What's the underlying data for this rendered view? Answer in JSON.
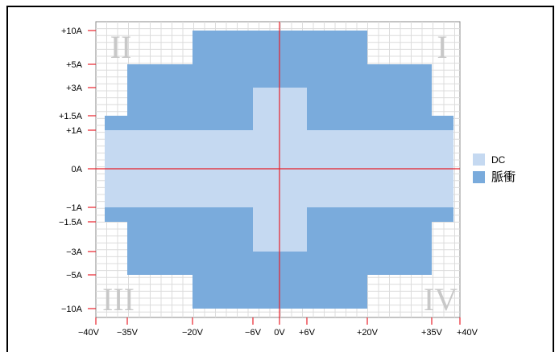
{
  "chart_data": {
    "type": "area",
    "x_ticks": [
      {
        "v": -40,
        "label": "−40V"
      },
      {
        "v": -35,
        "label": "−35V"
      },
      {
        "v": -20,
        "label": "−20V"
      },
      {
        "v": -6,
        "label": "−6V"
      },
      {
        "v": 0,
        "label": "0V"
      },
      {
        "v": 6,
        "label": "+6V"
      },
      {
        "v": 20,
        "label": "+20V"
      },
      {
        "v": 35,
        "label": "+35V"
      },
      {
        "v": 40,
        "label": "+40V"
      }
    ],
    "y_ticks": [
      {
        "v": 10,
        "label": "+10A"
      },
      {
        "v": 5,
        "label": "+5A"
      },
      {
        "v": 3,
        "label": "+3A"
      },
      {
        "v": 1.5,
        "label": "+1.5A"
      },
      {
        "v": 1,
        "label": "+1A"
      },
      {
        "v": 0,
        "label": "0A"
      },
      {
        "v": -1,
        "label": "−1A"
      },
      {
        "v": -1.5,
        "label": "−1.5A"
      },
      {
        "v": -3,
        "label": "−3A"
      },
      {
        "v": -5,
        "label": "−5A"
      },
      {
        "v": -10,
        "label": "−10A"
      }
    ],
    "series": [
      {
        "name": "DC",
        "color": "#c5d9f1",
        "regions": [
          {
            "x": [
              -38,
              38
            ],
            "y": [
              -1,
              1
            ]
          },
          {
            "x": [
              -6,
              6
            ],
            "y": [
              -3,
              3
            ]
          }
        ]
      },
      {
        "name": "脈衝",
        "color": "#7aabdc",
        "regions": [
          {
            "x": [
              -38,
              38
            ],
            "y": [
              -1.5,
              1.5
            ]
          },
          {
            "x": [
              -35,
              35
            ],
            "y": [
              -5,
              5
            ]
          },
          {
            "x": [
              -20,
              20
            ],
            "y": [
              -10,
              10
            ]
          }
        ]
      }
    ],
    "quadrant_labels": [
      "I",
      "II",
      "III",
      "IV"
    ],
    "grid": true,
    "legend": "right"
  }
}
